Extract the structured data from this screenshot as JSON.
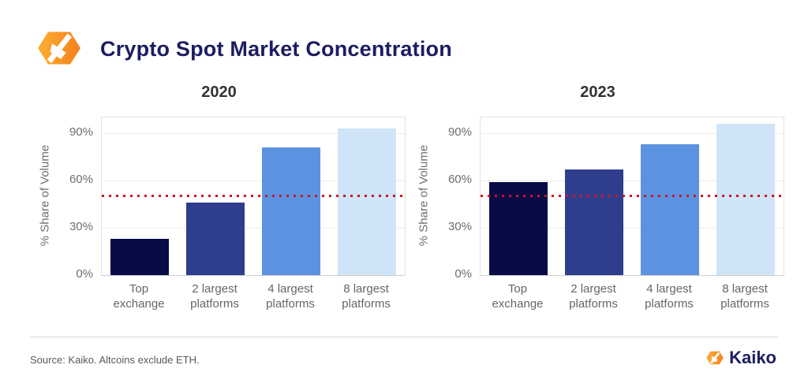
{
  "header": {
    "title": "Crypto Spot Market Concentration",
    "logo_icon": "kaiko-hexagon-mark"
  },
  "footer": {
    "source_note": "Source: Kaiko. Altcoins exclude ETH.",
    "brand_name": "Kaiko",
    "brand_icon": "kaiko-hexagon-mark"
  },
  "colors": {
    "title_navy": "#1c1c62",
    "chart_title_text": "#333333",
    "axis_text": "#6e6e6e",
    "category_text": "#666666",
    "grid": "#ececec",
    "plot_border": "#e2e2e2",
    "reference_line_red": "#cc1626",
    "bar_palette": [
      "#070c47",
      "#2f3d8d",
      "#5b93e0",
      "#cfe4f7"
    ],
    "brand_orange_light": "#fbb034",
    "brand_orange_dark": "#f47f1b"
  },
  "chart_data": [
    {
      "type": "bar",
      "title": "2020",
      "categories": [
        [
          "Top",
          "exchange"
        ],
        [
          "2 largest",
          "platforms"
        ],
        [
          "4 largest",
          "platforms"
        ],
        [
          "8 largest",
          "platforms"
        ]
      ],
      "values": [
        23,
        46,
        81,
        93
      ],
      "xlabel": "",
      "ylabel": "% Share of Volume",
      "yticks": [
        0,
        30,
        60,
        90
      ],
      "ytick_suffix": "%",
      "ylim": [
        0,
        100
      ],
      "grid": true,
      "reference_line": 50
    },
    {
      "type": "bar",
      "title": "2023",
      "categories": [
        [
          "Top",
          "exchange"
        ],
        [
          "2 largest",
          "platforms"
        ],
        [
          "4 largest",
          "platforms"
        ],
        [
          "8 largest",
          "platforms"
        ]
      ],
      "values": [
        59,
        67,
        83,
        96
      ],
      "xlabel": "",
      "ylabel": "% Share of Volume",
      "yticks": [
        0,
        30,
        60,
        90
      ],
      "ytick_suffix": "%",
      "ylim": [
        0,
        100
      ],
      "grid": true,
      "reference_line": 50
    }
  ]
}
